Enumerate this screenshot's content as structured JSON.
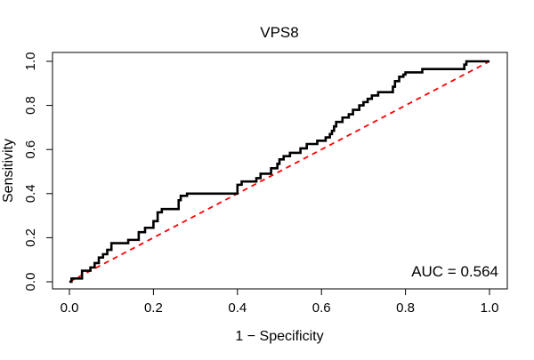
{
  "chart_data": {
    "type": "line",
    "title": "VPS8",
    "xlabel": "1 − Specificity",
    "ylabel": "Sensitivity",
    "xlim": [
      0,
      1
    ],
    "ylim": [
      0,
      1
    ],
    "xticks": [
      "0.0",
      "0.2",
      "0.4",
      "0.6",
      "0.8",
      "1.0"
    ],
    "yticks": [
      "0.0",
      "0.2",
      "0.4",
      "0.6",
      "0.8",
      "1.0"
    ],
    "grid": false,
    "annotation": "AUC = 0.564",
    "series": [
      {
        "color": "#000000",
        "style": "solid-step",
        "points": [
          [
            0.0,
            0.0
          ],
          [
            0.005,
            0.0
          ],
          [
            0.005,
            0.015
          ],
          [
            0.03,
            0.015
          ],
          [
            0.03,
            0.05
          ],
          [
            0.05,
            0.05
          ],
          [
            0.05,
            0.065
          ],
          [
            0.06,
            0.065
          ],
          [
            0.06,
            0.085
          ],
          [
            0.07,
            0.085
          ],
          [
            0.07,
            0.11
          ],
          [
            0.08,
            0.11
          ],
          [
            0.08,
            0.125
          ],
          [
            0.09,
            0.125
          ],
          [
            0.09,
            0.145
          ],
          [
            0.1,
            0.145
          ],
          [
            0.1,
            0.175
          ],
          [
            0.14,
            0.175
          ],
          [
            0.14,
            0.19
          ],
          [
            0.165,
            0.19
          ],
          [
            0.165,
            0.225
          ],
          [
            0.18,
            0.225
          ],
          [
            0.18,
            0.245
          ],
          [
            0.2,
            0.245
          ],
          [
            0.2,
            0.275
          ],
          [
            0.21,
            0.275
          ],
          [
            0.21,
            0.315
          ],
          [
            0.22,
            0.315
          ],
          [
            0.22,
            0.33
          ],
          [
            0.26,
            0.33
          ],
          [
            0.26,
            0.37
          ],
          [
            0.265,
            0.37
          ],
          [
            0.265,
            0.39
          ],
          [
            0.28,
            0.39
          ],
          [
            0.28,
            0.4
          ],
          [
            0.4,
            0.4
          ],
          [
            0.4,
            0.44
          ],
          [
            0.41,
            0.44
          ],
          [
            0.41,
            0.455
          ],
          [
            0.445,
            0.455
          ],
          [
            0.445,
            0.47
          ],
          [
            0.455,
            0.47
          ],
          [
            0.455,
            0.49
          ],
          [
            0.48,
            0.49
          ],
          [
            0.48,
            0.515
          ],
          [
            0.495,
            0.515
          ],
          [
            0.495,
            0.535
          ],
          [
            0.5,
            0.535
          ],
          [
            0.5,
            0.555
          ],
          [
            0.51,
            0.555
          ],
          [
            0.51,
            0.57
          ],
          [
            0.525,
            0.57
          ],
          [
            0.525,
            0.585
          ],
          [
            0.55,
            0.585
          ],
          [
            0.55,
            0.605
          ],
          [
            0.565,
            0.605
          ],
          [
            0.565,
            0.625
          ],
          [
            0.59,
            0.625
          ],
          [
            0.59,
            0.64
          ],
          [
            0.61,
            0.64
          ],
          [
            0.61,
            0.655
          ],
          [
            0.62,
            0.655
          ],
          [
            0.62,
            0.67
          ],
          [
            0.625,
            0.67
          ],
          [
            0.625,
            0.685
          ],
          [
            0.63,
            0.685
          ],
          [
            0.63,
            0.705
          ],
          [
            0.635,
            0.705
          ],
          [
            0.635,
            0.725
          ],
          [
            0.65,
            0.725
          ],
          [
            0.65,
            0.745
          ],
          [
            0.665,
            0.745
          ],
          [
            0.665,
            0.76
          ],
          [
            0.675,
            0.76
          ],
          [
            0.675,
            0.78
          ],
          [
            0.69,
            0.78
          ],
          [
            0.69,
            0.8
          ],
          [
            0.7,
            0.8
          ],
          [
            0.7,
            0.815
          ],
          [
            0.71,
            0.815
          ],
          [
            0.71,
            0.83
          ],
          [
            0.72,
            0.83
          ],
          [
            0.72,
            0.845
          ],
          [
            0.735,
            0.845
          ],
          [
            0.735,
            0.86
          ],
          [
            0.77,
            0.86
          ],
          [
            0.77,
            0.885
          ],
          [
            0.775,
            0.885
          ],
          [
            0.775,
            0.91
          ],
          [
            0.785,
            0.91
          ],
          [
            0.785,
            0.93
          ],
          [
            0.795,
            0.93
          ],
          [
            0.795,
            0.94
          ],
          [
            0.8,
            0.94
          ],
          [
            0.8,
            0.95
          ],
          [
            0.84,
            0.95
          ],
          [
            0.84,
            0.965
          ],
          [
            0.94,
            0.965
          ],
          [
            0.94,
            0.985
          ],
          [
            0.945,
            0.985
          ],
          [
            0.945,
            1.0
          ],
          [
            1.0,
            1.0
          ]
        ]
      },
      {
        "color": "#ff0000",
        "style": "dashed",
        "points": [
          [
            0,
            0
          ],
          [
            1,
            1
          ]
        ]
      }
    ]
  }
}
